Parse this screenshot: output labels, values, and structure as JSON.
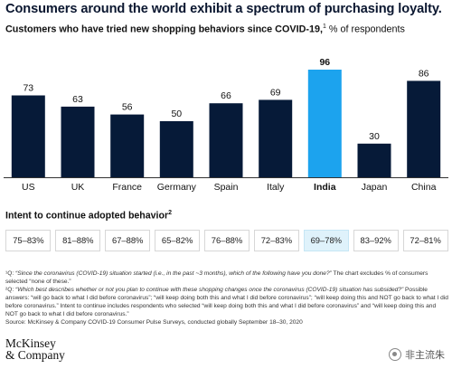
{
  "header": {
    "title": "Consumers around the world exhibit a spectrum of purchasing loyalty.",
    "subtitle_bold": "Customers who have tried new shopping behaviors since COVID-19,",
    "subtitle_sup": "1",
    "subtitle_rest": " % of respondents"
  },
  "chart_data": {
    "type": "bar",
    "categories": [
      "US",
      "UK",
      "France",
      "Germany",
      "Spain",
      "Italy",
      "India",
      "Japan",
      "China"
    ],
    "values": [
      73,
      63,
      56,
      50,
      66,
      69,
      96,
      30,
      86
    ],
    "highlight": "India",
    "ylim": [
      0,
      100
    ],
    "grid": false,
    "colors": {
      "bar": "#061a38",
      "highlight": "#1ca3ee",
      "baseline": "#333333"
    }
  },
  "intent": {
    "label": "Intent to continue adopted behavior",
    "label_sup": "2",
    "ranges": [
      "75–83%",
      "81–88%",
      "67–88%",
      "65–82%",
      "76–88%",
      "72–83%",
      "69–78%",
      "83–92%",
      "72–81%"
    ],
    "highlight_index": 6
  },
  "footnotes": {
    "note1_prefix": "¹Q: ",
    "note1_italic": "“Since the coronavirus (COVID-19) situation started (i.e., in the past ~3 months), which of the following have you done?”",
    "note1_rest": " The chart excludes % of consumers selected “none of these.”",
    "note2_prefix": "²Q: ",
    "note2_italic": "“Which best describes whether or not you plan to continue with these shopping changes once the coronavirus (COVID-19) situation has subsided?”",
    "note2_rest": " Possible answers: “will go back to what I did before coronavirus”; “will keep doing both this and what I did before coronavirus”; “will keep doing this and NOT go back to what I did before coronavirus.” Intent to continue includes respondents who selected “will keep doing both this and what I did before coronavirus” and “will keep doing this and NOT go back to what I did before coronavirus.”",
    "source": "Source: McKinsey & Company COVID-19 Consumer Pulse Surveys, conducted globally September 18–30, 2020"
  },
  "logo": {
    "line1": "McKinsey",
    "line2": "& Company"
  },
  "watermark": {
    "text": "非主流朱",
    "icon": "wechat-icon"
  }
}
